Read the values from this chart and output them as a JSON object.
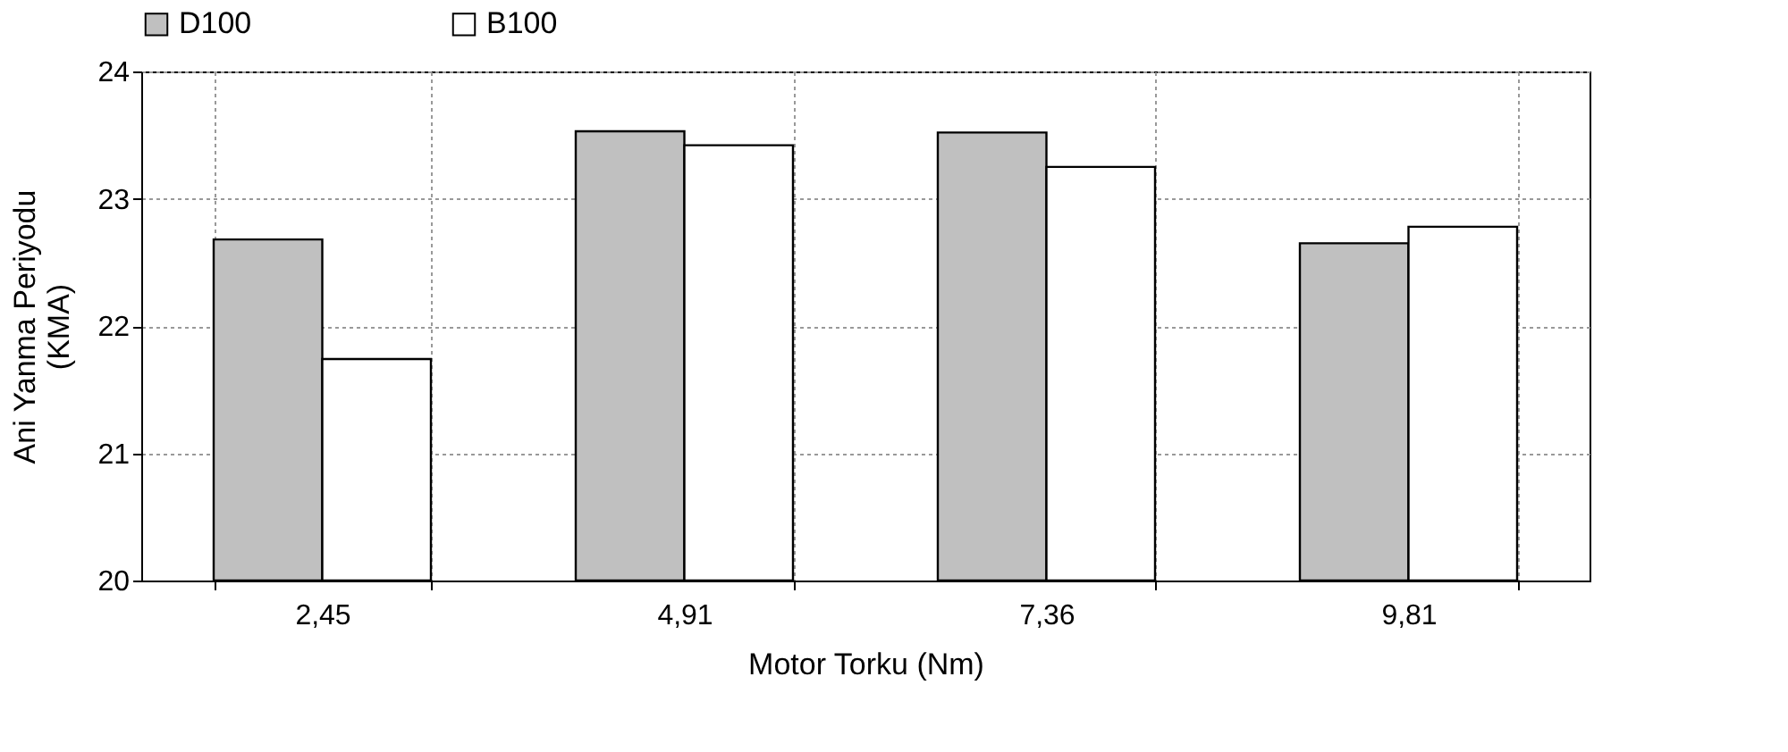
{
  "chart_data": {
    "type": "bar",
    "xlabel": "Motor Torku (Nm)",
    "ylabel": "Ani Yanma Periyodu\n(KMA)",
    "categories": [
      "2,45",
      "4,91",
      "7,36",
      "9,81"
    ],
    "series": [
      {
        "name": "D100",
        "color": "#c0c0c0",
        "values": [
          22.68,
          23.53,
          23.52,
          22.65
        ]
      },
      {
        "name": "B100",
        "color": "#ffffff",
        "values": [
          21.74,
          23.42,
          23.25,
          22.78
        ]
      }
    ],
    "ylim": [
      20,
      24
    ],
    "yticks": [
      20,
      21,
      22,
      23,
      24
    ],
    "grid": true,
    "legend": "top"
  }
}
